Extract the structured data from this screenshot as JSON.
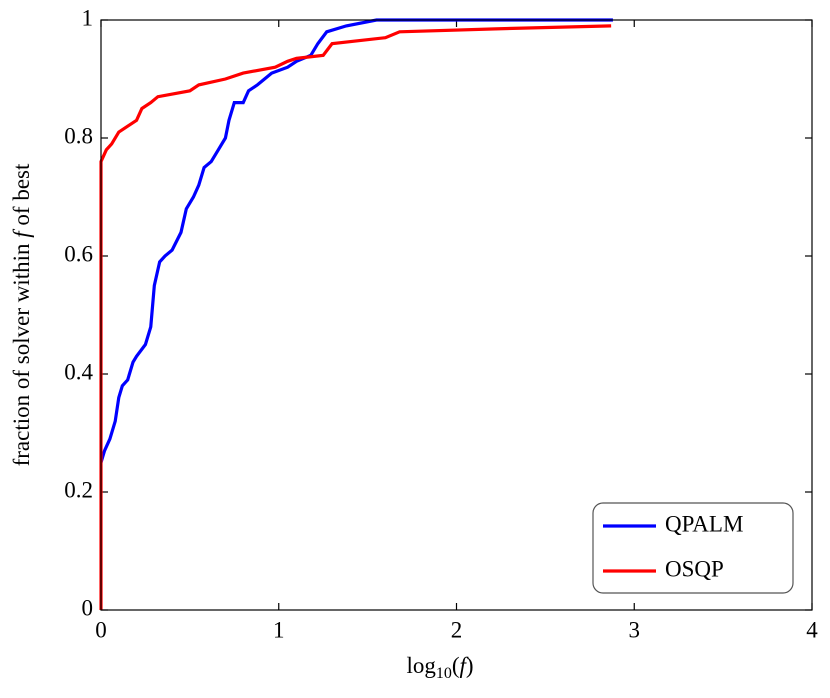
{
  "chart_data": {
    "type": "line",
    "xlabel": [
      "log",
      "10",
      "(",
      "f",
      ")"
    ],
    "ylabel": [
      "fraction of solver within ",
      "f",
      " of best"
    ],
    "xlim": [
      0,
      4
    ],
    "xticks": [
      0,
      1,
      2,
      3,
      4
    ],
    "ylim": [
      0,
      1
    ],
    "yticks": [
      0,
      0.2,
      0.4,
      0.6,
      0.8,
      1
    ],
    "legend": "lower right",
    "series": [
      {
        "name": "QPALM",
        "color": "#0000ff",
        "x": [
          0,
          0.02,
          0.05,
          0.08,
          0.1,
          0.12,
          0.15,
          0.18,
          0.2,
          0.25,
          0.28,
          0.3,
          0.33,
          0.36,
          0.4,
          0.45,
          0.48,
          0.52,
          0.55,
          0.58,
          0.62,
          0.66,
          0.7,
          0.72,
          0.75,
          0.8,
          0.83,
          0.88,
          0.92,
          0.96,
          1.05,
          1.1,
          1.18,
          1.22,
          1.27,
          1.38,
          1.55,
          2.88
        ],
        "values": [
          0.25,
          0.27,
          0.29,
          0.32,
          0.36,
          0.38,
          0.39,
          0.42,
          0.43,
          0.45,
          0.48,
          0.55,
          0.59,
          0.6,
          0.61,
          0.64,
          0.68,
          0.7,
          0.72,
          0.75,
          0.76,
          0.78,
          0.8,
          0.83,
          0.86,
          0.86,
          0.88,
          0.89,
          0.9,
          0.91,
          0.92,
          0.93,
          0.94,
          0.96,
          0.98,
          0.99,
          1.0,
          1.0
        ]
      },
      {
        "name": "OSQP",
        "color": "#ff0000",
        "x": [
          0,
          0,
          0.03,
          0.06,
          0.1,
          0.15,
          0.2,
          0.23,
          0.28,
          0.32,
          0.5,
          0.55,
          0.7,
          0.8,
          0.98,
          1.05,
          1.1,
          1.25,
          1.3,
          1.6,
          1.68,
          2.22,
          2.87
        ],
        "values": [
          0,
          0.76,
          0.78,
          0.79,
          0.81,
          0.82,
          0.83,
          0.85,
          0.86,
          0.87,
          0.88,
          0.89,
          0.9,
          0.91,
          0.92,
          0.93,
          0.935,
          0.94,
          0.96,
          0.97,
          0.98,
          0.985,
          0.99
        ]
      }
    ]
  }
}
